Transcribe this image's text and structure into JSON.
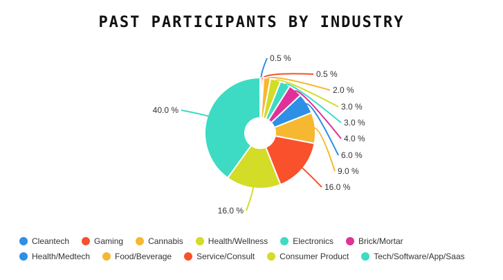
{
  "chart_data": {
    "type": "pie",
    "title": "PAST PARTICIPANTS BY INDUSTRY",
    "donut": true,
    "legend_position": "bottom",
    "slices": [
      {
        "label": "Cleantech",
        "value": 0.5,
        "value_label": "0.5 %",
        "color": "#2e8fe6"
      },
      {
        "label": "Gaming",
        "value": 0.5,
        "value_label": "0.5 %",
        "color": "#f2512c"
      },
      {
        "label": "Cannabis",
        "value": 2.0,
        "value_label": "2.0 %",
        "color": "#f6b830"
      },
      {
        "label": "Health/Wellness",
        "value": 3.0,
        "value_label": "3.0 %",
        "color": "#d3dc26"
      },
      {
        "label": "Electronics",
        "value": 3.0,
        "value_label": "3.0 %",
        "color": "#3ddbc3"
      },
      {
        "label": "Brick/Mortar",
        "value": 4.0,
        "value_label": "4.0 %",
        "color": "#e0319a"
      },
      {
        "label": "Health/Medtech",
        "value": 6.0,
        "value_label": "6.0 %",
        "color": "#2e8fe6"
      },
      {
        "label": "Food/Beverage",
        "value": 9.0,
        "value_label": "9.0 %",
        "color": "#f6b830"
      },
      {
        "label": "Service/Consult",
        "value": 16.0,
        "value_label": "16.0 %",
        "color": "#f9512c"
      },
      {
        "label": "Consumer Product",
        "value": 16.0,
        "value_label": "16.0 %",
        "color": "#d3dc26"
      },
      {
        "label": "Tech/Software/App/Saas",
        "value": 40.0,
        "value_label": "40.0 %",
        "color": "#3ddbc3"
      }
    ]
  }
}
